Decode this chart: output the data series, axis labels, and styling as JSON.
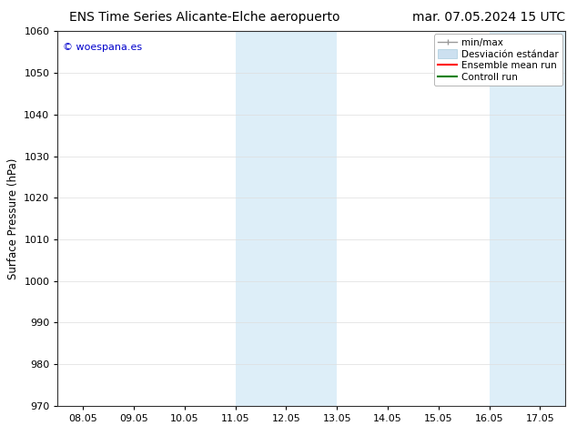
{
  "title_left": "ENS Time Series Alicante-Elche aeropuerto",
  "title_right": "mar. 07.05.2024 15 UTC",
  "ylabel": "Surface Pressure (hPa)",
  "watermark": "© woespana.es",
  "ylim": [
    970,
    1060
  ],
  "yticks": [
    970,
    980,
    990,
    1000,
    1010,
    1020,
    1030,
    1040,
    1050,
    1060
  ],
  "xtick_labels": [
    "08.05",
    "09.05",
    "10.05",
    "11.05",
    "12.05",
    "13.05",
    "14.05",
    "15.05",
    "16.05",
    "17.05"
  ],
  "xtick_positions": [
    0,
    1,
    2,
    3,
    4,
    5,
    6,
    7,
    8,
    9
  ],
  "xlim_start": -0.5,
  "xlim_end": 9.5,
  "shaded_regions": [
    {
      "xmin": 3.0,
      "xmax": 5.0
    },
    {
      "xmin": 8.0,
      "xmax": 9.5
    }
  ],
  "shaded_color": "#ddeef8",
  "bg_color": "#ffffff",
  "title_fontsize": 10,
  "tick_fontsize": 8,
  "legend_fontsize": 7.5
}
